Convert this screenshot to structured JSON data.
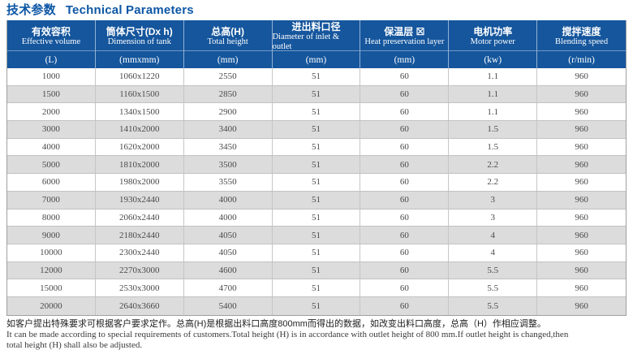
{
  "title": {
    "zh": "技术参数",
    "en": "Technical Parameters"
  },
  "table": {
    "columns": [
      {
        "zh": "有效容积",
        "en": "Effective volume",
        "unit": "(L)"
      },
      {
        "zh": "筒体尺寸(Dx h)",
        "en": "Dimension of tank",
        "unit": "(mmxmm)"
      },
      {
        "zh": "总高(H)",
        "en": "Total height",
        "unit": "(mm)"
      },
      {
        "zh": "进出料口径",
        "en": "Diameter of inlet & outlet",
        "unit": "(mm)"
      },
      {
        "zh": "保温层 ☒",
        "en": "Heat preservation layer",
        "unit": "(mm)"
      },
      {
        "zh": "电机功率",
        "en": "Motor power",
        "unit": "(kw)"
      },
      {
        "zh": "搅拌速度",
        "en": "Blending speed",
        "unit": "(r/min)"
      }
    ],
    "rows": [
      [
        "1000",
        "1060x1220",
        "2550",
        "51",
        "60",
        "1.1",
        "960"
      ],
      [
        "1500",
        "1160x1500",
        "2850",
        "51",
        "60",
        "1.1",
        "960"
      ],
      [
        "2000",
        "1340x1500",
        "2900",
        "51",
        "60",
        "1.1",
        "960"
      ],
      [
        "3000",
        "1410x2000",
        "3400",
        "51",
        "60",
        "1.5",
        "960"
      ],
      [
        "4000",
        "1620x2000",
        "3450",
        "51",
        "60",
        "1.5",
        "960"
      ],
      [
        "5000",
        "1810x2000",
        "3500",
        "51",
        "60",
        "2.2",
        "960"
      ],
      [
        "6000",
        "1980x2000",
        "3550",
        "51",
        "60",
        "2.2",
        "960"
      ],
      [
        "7000",
        "1930x2440",
        "4000",
        "51",
        "60",
        "3",
        "960"
      ],
      [
        "8000",
        "2060x2440",
        "4000",
        "51",
        "60",
        "3",
        "960"
      ],
      [
        "9000",
        "2180x2440",
        "4050",
        "51",
        "60",
        "4",
        "960"
      ],
      [
        "10000",
        "2300x2440",
        "4050",
        "51",
        "60",
        "4",
        "960"
      ],
      [
        "12000",
        "2270x3000",
        "4600",
        "51",
        "60",
        "5.5",
        "960"
      ],
      [
        "15000",
        "2530x3000",
        "4700",
        "51",
        "60",
        "5.5",
        "960"
      ],
      [
        "20000",
        "2640x3660",
        "5400",
        "51",
        "60",
        "5.5",
        "960"
      ]
    ]
  },
  "notes": {
    "zh": "如客户提出特殊要求可根据客户要求定作。总高(H)是根据出料口高度800mm而得出的数据，如改变出料口高度，总高（H）作相应调整。",
    "en_line1": "It can be made according to special requirements of customers.Total height (H) is in accordance with outlet height of 800 mm.If outlet height is changed,then",
    "en_line2": "total height (H) shall also be adjusted."
  },
  "colors": {
    "header_blue": "#15569d",
    "title_blue": "#0d57a6",
    "row_alt_gray": "#dcdcdc",
    "border_gray": "#c2c2c2"
  }
}
